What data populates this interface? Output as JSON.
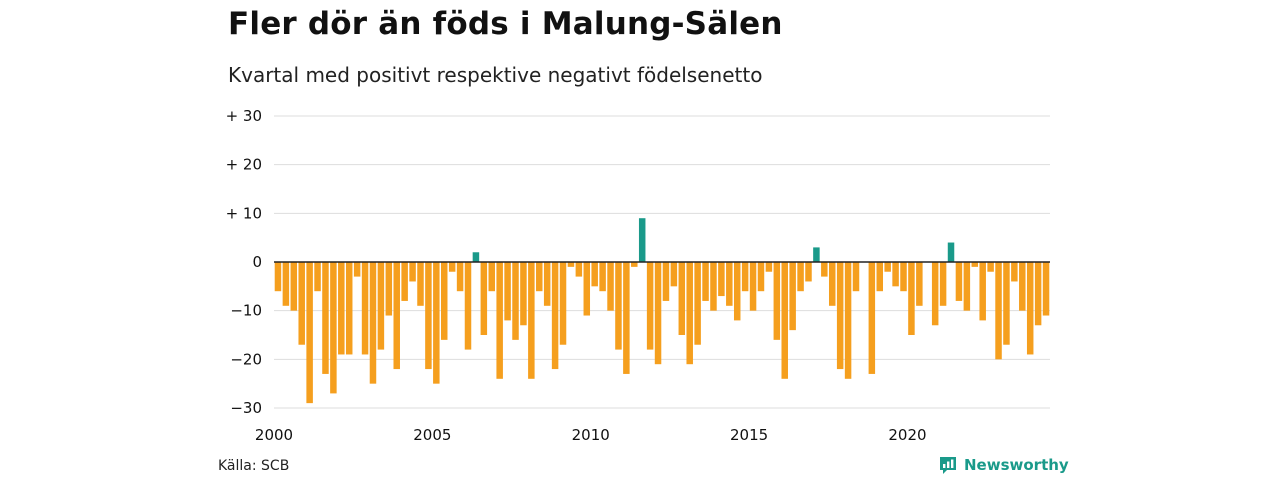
{
  "title": "Fler dör än föds i Malung-Sälen",
  "subtitle": "Kvartal med positivt respektive negativt födelsenetto",
  "source": "Källa: SCB",
  "brand": "Newsworthy",
  "chart_data": {
    "type": "bar",
    "title": "Fler dör än föds i Malung-Sälen",
    "subtitle": "Kvartal med positivt respektive negativt födelsenetto",
    "x_start": "2000-Q1",
    "ylim": [
      -30,
      30
    ],
    "y_ticks": [
      30,
      20,
      10,
      0,
      -10,
      -20,
      -30
    ],
    "y_tick_labels": [
      "+ 30",
      "+ 20",
      "+ 10",
      "0",
      "−10",
      "−20",
      "−30"
    ],
    "x_ticks": [
      2000,
      2005,
      2010,
      2015,
      2020
    ],
    "x_tick_labels": [
      "2000",
      "2005",
      "2010",
      "2015",
      "2020"
    ],
    "colors": {
      "positive": "#1a9a8a",
      "negative": "#f59f1e",
      "grid": "#dddddd",
      "baseline": "#222222"
    },
    "grid": true,
    "legend": "none",
    "values": [
      -6,
      -9,
      -10,
      -17,
      -29,
      -6,
      -23,
      -27,
      -19,
      -19,
      -3,
      -19,
      -25,
      -18,
      -11,
      -22,
      -8,
      -4,
      -9,
      -22,
      -25,
      -16,
      -2,
      -6,
      -18,
      2,
      -15,
      -6,
      -24,
      -12,
      -16,
      -13,
      -24,
      -6,
      -9,
      -22,
      -17,
      -1,
      -3,
      -11,
      -5,
      -6,
      -10,
      -18,
      -23,
      -1,
      9,
      -18,
      -21,
      -8,
      -5,
      -15,
      -21,
      -17,
      -8,
      -10,
      -7,
      -9,
      -12,
      -6,
      -10,
      -6,
      -2,
      -16,
      -24,
      -14,
      -6,
      -4,
      3,
      -3,
      -9,
      -22,
      -24,
      -6,
      0,
      -23,
      -6,
      -2,
      -5,
      -6,
      -15,
      -9,
      0,
      -13,
      -9,
      4,
      -8,
      -10,
      -1,
      -12,
      -2,
      -20,
      -17,
      -4,
      -10,
      -19,
      -13,
      -11
    ]
  }
}
